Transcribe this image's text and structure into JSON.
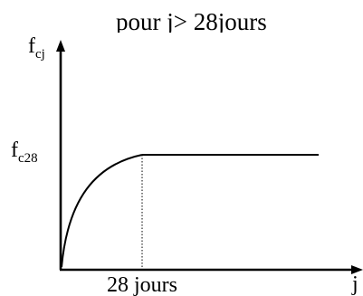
{
  "header": {
    "caption": "pour j> 28jours"
  },
  "axes": {
    "y_label": "f",
    "y_label_sub": "cj",
    "x_label": "j"
  },
  "levels": {
    "plateau_label": "f",
    "plateau_label_sub": "c28"
  },
  "ticks": {
    "x_28_label": "28 jours"
  },
  "colors": {
    "ink": "#000000",
    "background": "#ffffff"
  }
}
